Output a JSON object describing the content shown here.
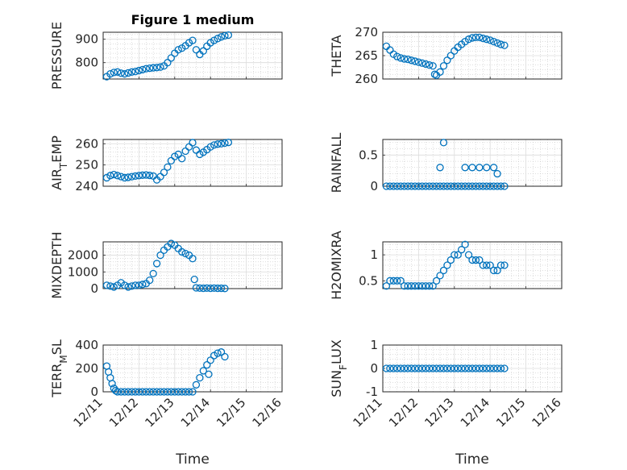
{
  "chart_data": [
    {
      "type": "scatter",
      "id": "pressure",
      "title": "Figure 1 medium",
      "ylabel": "PRESSURE",
      "xlabel": "",
      "ylim": [
        730,
        930
      ],
      "yticks": [
        800,
        900
      ],
      "ytick_labels": [
        "800",
        "900"
      ],
      "xlim": [
        0,
        5
      ],
      "xticks": [
        0,
        1,
        2,
        3,
        4,
        5
      ],
      "xtick_labels": [
        "12/11",
        "12/12",
        "12/13",
        "12/14",
        "12/15",
        "12/16"
      ],
      "show_xtick_labels": false,
      "grid": true,
      "minor_grid": true,
      "points": [
        [
          0.1,
          740
        ],
        [
          0.2,
          752
        ],
        [
          0.3,
          758
        ],
        [
          0.4,
          760
        ],
        [
          0.5,
          755
        ],
        [
          0.6,
          752
        ],
        [
          0.7,
          756
        ],
        [
          0.8,
          760
        ],
        [
          0.9,
          762
        ],
        [
          1.0,
          766
        ],
        [
          1.1,
          770
        ],
        [
          1.2,
          774
        ],
        [
          1.3,
          776
        ],
        [
          1.4,
          778
        ],
        [
          1.5,
          779
        ],
        [
          1.6,
          781
        ],
        [
          1.7,
          786
        ],
        [
          1.8,
          800
        ],
        [
          1.9,
          820
        ],
        [
          2.0,
          840
        ],
        [
          2.1,
          855
        ],
        [
          2.2,
          862
        ],
        [
          2.3,
          872
        ],
        [
          2.4,
          885
        ],
        [
          2.5,
          895
        ],
        [
          2.6,
          855
        ],
        [
          2.7,
          835
        ],
        [
          2.8,
          850
        ],
        [
          2.9,
          870
        ],
        [
          3.0,
          885
        ],
        [
          3.1,
          895
        ],
        [
          3.2,
          903
        ],
        [
          3.3,
          910
        ],
        [
          3.4,
          915
        ],
        [
          3.5,
          918
        ]
      ]
    },
    {
      "type": "scatter",
      "id": "theta",
      "title": "",
      "ylabel": "THETA",
      "xlabel": "",
      "ylim": [
        260,
        270
      ],
      "yticks": [
        260,
        265,
        270
      ],
      "ytick_labels": [
        "260",
        "265",
        "270"
      ],
      "xlim": [
        0,
        5
      ],
      "xticks": [
        0,
        1,
        2,
        3,
        4,
        5
      ],
      "xtick_labels": [
        "12/11",
        "12/12",
        "12/13",
        "12/14",
        "12/15",
        "12/16"
      ],
      "show_xtick_labels": false,
      "grid": true,
      "minor_grid": true,
      "points": [
        [
          0.1,
          267
        ],
        [
          0.2,
          266.2
        ],
        [
          0.3,
          265.3
        ],
        [
          0.4,
          264.8
        ],
        [
          0.5,
          264.5
        ],
        [
          0.6,
          264.3
        ],
        [
          0.7,
          264.2
        ],
        [
          0.8,
          264
        ],
        [
          0.9,
          263.8
        ],
        [
          1.0,
          263.6
        ],
        [
          1.1,
          263.4
        ],
        [
          1.2,
          263.2
        ],
        [
          1.3,
          263
        ],
        [
          1.4,
          262.8
        ],
        [
          1.45,
          261
        ],
        [
          1.5,
          260.8
        ],
        [
          1.6,
          261.5
        ],
        [
          1.7,
          262.8
        ],
        [
          1.8,
          264
        ],
        [
          1.9,
          265
        ],
        [
          2.0,
          266
        ],
        [
          2.1,
          266.8
        ],
        [
          2.2,
          267.4
        ],
        [
          2.3,
          268
        ],
        [
          2.4,
          268.5
        ],
        [
          2.5,
          268.8
        ],
        [
          2.6,
          268.9
        ],
        [
          2.7,
          268.9
        ],
        [
          2.8,
          268.7
        ],
        [
          2.9,
          268.5
        ],
        [
          3.0,
          268.3
        ],
        [
          3.1,
          268
        ],
        [
          3.2,
          267.7
        ],
        [
          3.3,
          267.4
        ],
        [
          3.4,
          267.2
        ]
      ]
    },
    {
      "type": "scatter",
      "id": "air_temp",
      "title": "",
      "ylabel": "AIR_TEMP",
      "xlabel": "",
      "ylim": [
        240,
        262
      ],
      "yticks": [
        240,
        250,
        260
      ],
      "ytick_labels": [
        "240",
        "250",
        "260"
      ],
      "xlim": [
        0,
        5
      ],
      "xticks": [
        0,
        1,
        2,
        3,
        4,
        5
      ],
      "xtick_labels": [
        "12/11",
        "12/12",
        "12/13",
        "12/14",
        "12/15",
        "12/16"
      ],
      "show_xtick_labels": false,
      "grid": true,
      "minor_grid": true,
      "points": [
        [
          0.1,
          244
        ],
        [
          0.2,
          245
        ],
        [
          0.3,
          245.5
        ],
        [
          0.4,
          245
        ],
        [
          0.5,
          244.5
        ],
        [
          0.6,
          244
        ],
        [
          0.7,
          244.2
        ],
        [
          0.8,
          244.5
        ],
        [
          0.9,
          244.8
        ],
        [
          1.0,
          245
        ],
        [
          1.1,
          245.2
        ],
        [
          1.2,
          245.3
        ],
        [
          1.3,
          245.1
        ],
        [
          1.4,
          244.8
        ],
        [
          1.5,
          243
        ],
        [
          1.6,
          244.5
        ],
        [
          1.7,
          246.5
        ],
        [
          1.8,
          249
        ],
        [
          1.9,
          252
        ],
        [
          2.0,
          254
        ],
        [
          2.1,
          255
        ],
        [
          2.2,
          253
        ],
        [
          2.3,
          256.5
        ],
        [
          2.4,
          258.5
        ],
        [
          2.5,
          260.5
        ],
        [
          2.6,
          257
        ],
        [
          2.7,
          255
        ],
        [
          2.8,
          256
        ],
        [
          2.9,
          257.2
        ],
        [
          3.0,
          258.5
        ],
        [
          3.1,
          259.4
        ],
        [
          3.2,
          259.8
        ],
        [
          3.3,
          260
        ],
        [
          3.4,
          260.3
        ],
        [
          3.5,
          260.6
        ]
      ]
    },
    {
      "type": "scatter",
      "id": "rainfall",
      "title": "",
      "ylabel": "RAINFALL",
      "xlabel": "",
      "ylim": [
        0,
        0.75
      ],
      "yticks": [
        0,
        0.5
      ],
      "ytick_labels": [
        "0",
        "0.5"
      ],
      "xlim": [
        0,
        5
      ],
      "xticks": [
        0,
        1,
        2,
        3,
        4,
        5
      ],
      "xtick_labels": [
        "12/11",
        "12/12",
        "12/13",
        "12/14",
        "12/15",
        "12/16"
      ],
      "show_xtick_labels": false,
      "grid": true,
      "minor_grid": true,
      "points": [
        [
          0.1,
          0
        ],
        [
          0.2,
          0
        ],
        [
          0.3,
          0
        ],
        [
          0.4,
          0
        ],
        [
          0.5,
          0
        ],
        [
          0.6,
          0
        ],
        [
          0.7,
          0
        ],
        [
          0.8,
          0
        ],
        [
          0.9,
          0
        ],
        [
          1.0,
          0
        ],
        [
          1.1,
          0
        ],
        [
          1.2,
          0
        ],
        [
          1.3,
          0
        ],
        [
          1.4,
          0
        ],
        [
          1.5,
          0
        ],
        [
          1.6,
          0
        ],
        [
          1.7,
          0
        ],
        [
          1.8,
          0
        ],
        [
          1.9,
          0
        ],
        [
          2.0,
          0
        ],
        [
          2.1,
          0
        ],
        [
          2.2,
          0
        ],
        [
          2.3,
          0
        ],
        [
          2.4,
          0
        ],
        [
          2.5,
          0
        ],
        [
          2.6,
          0
        ],
        [
          2.7,
          0
        ],
        [
          2.8,
          0
        ],
        [
          2.9,
          0
        ],
        [
          3.0,
          0
        ],
        [
          3.1,
          0
        ],
        [
          3.2,
          0
        ],
        [
          3.3,
          0
        ],
        [
          3.4,
          0
        ],
        [
          1.6,
          0.3
        ],
        [
          1.7,
          0.7
        ],
        [
          2.3,
          0.3
        ],
        [
          2.5,
          0.3
        ],
        [
          2.7,
          0.3
        ],
        [
          2.9,
          0.3
        ],
        [
          3.1,
          0.3
        ],
        [
          3.2,
          0.2
        ]
      ]
    },
    {
      "type": "scatter",
      "id": "mixdepth",
      "title": "",
      "ylabel": "MIXDEPTH",
      "xlabel": "",
      "ylim": [
        0,
        2800
      ],
      "yticks": [
        0,
        1000,
        2000
      ],
      "ytick_labels": [
        "0",
        "1000",
        "2000"
      ],
      "xlim": [
        0,
        5
      ],
      "xticks": [
        0,
        1,
        2,
        3,
        4,
        5
      ],
      "xtick_labels": [
        "12/11",
        "12/12",
        "12/13",
        "12/14",
        "12/15",
        "12/16"
      ],
      "show_xtick_labels": false,
      "grid": true,
      "minor_grid": true,
      "points": [
        [
          0.1,
          200
        ],
        [
          0.2,
          150
        ],
        [
          0.3,
          100
        ],
        [
          0.4,
          200
        ],
        [
          0.5,
          350
        ],
        [
          0.6,
          200
        ],
        [
          0.7,
          100
        ],
        [
          0.8,
          150
        ],
        [
          0.9,
          200
        ],
        [
          1.0,
          200
        ],
        [
          1.1,
          250
        ],
        [
          1.2,
          300
        ],
        [
          1.3,
          500
        ],
        [
          1.4,
          900
        ],
        [
          1.5,
          1500
        ],
        [
          1.6,
          2000
        ],
        [
          1.7,
          2300
        ],
        [
          1.8,
          2500
        ],
        [
          1.9,
          2700
        ],
        [
          2.0,
          2600
        ],
        [
          2.1,
          2400
        ],
        [
          2.2,
          2200
        ],
        [
          2.3,
          2100
        ],
        [
          2.4,
          2000
        ],
        [
          2.5,
          1800
        ],
        [
          2.55,
          550
        ],
        [
          2.6,
          50
        ],
        [
          2.7,
          30
        ],
        [
          2.8,
          20
        ],
        [
          2.9,
          30
        ],
        [
          3.0,
          20
        ],
        [
          3.1,
          30
        ],
        [
          3.2,
          20
        ],
        [
          3.3,
          20
        ],
        [
          3.4,
          10
        ]
      ]
    },
    {
      "type": "scatter",
      "id": "h2omixra",
      "title": "",
      "ylabel": "H2OMIXRA",
      "xlabel": "",
      "ylim": [
        0.35,
        1.25
      ],
      "yticks": [
        0.5,
        1
      ],
      "ytick_labels": [
        "0.5",
        "1"
      ],
      "xlim": [
        0,
        5
      ],
      "xticks": [
        0,
        1,
        2,
        3,
        4,
        5
      ],
      "xtick_labels": [
        "12/11",
        "12/12",
        "12/13",
        "12/14",
        "12/15",
        "12/16"
      ],
      "show_xtick_labels": false,
      "grid": true,
      "minor_grid": true,
      "points": [
        [
          0.1,
          0.4
        ],
        [
          0.2,
          0.5
        ],
        [
          0.3,
          0.5
        ],
        [
          0.4,
          0.5
        ],
        [
          0.5,
          0.5
        ],
        [
          0.6,
          0.4
        ],
        [
          0.7,
          0.4
        ],
        [
          0.8,
          0.4
        ],
        [
          0.9,
          0.4
        ],
        [
          1.0,
          0.4
        ],
        [
          1.1,
          0.4
        ],
        [
          1.2,
          0.4
        ],
        [
          1.3,
          0.4
        ],
        [
          1.4,
          0.4
        ],
        [
          1.5,
          0.5
        ],
        [
          1.6,
          0.6
        ],
        [
          1.7,
          0.7
        ],
        [
          1.8,
          0.8
        ],
        [
          1.9,
          0.9
        ],
        [
          2.0,
          1.0
        ],
        [
          2.1,
          1.0
        ],
        [
          2.2,
          1.1
        ],
        [
          2.3,
          1.2
        ],
        [
          2.4,
          1.0
        ],
        [
          2.5,
          0.9
        ],
        [
          2.6,
          0.9
        ],
        [
          2.7,
          0.9
        ],
        [
          2.8,
          0.8
        ],
        [
          2.9,
          0.8
        ],
        [
          3.0,
          0.8
        ],
        [
          3.1,
          0.7
        ],
        [
          3.2,
          0.7
        ],
        [
          3.3,
          0.8
        ],
        [
          3.4,
          0.8
        ]
      ]
    },
    {
      "type": "scatter",
      "id": "terr_msl",
      "title": "",
      "ylabel": "TERR_MSL",
      "xlabel": "Time",
      "ylim": [
        0,
        400
      ],
      "yticks": [
        0,
        200,
        400
      ],
      "ytick_labels": [
        "0",
        "200",
        "400"
      ],
      "xlim": [
        0,
        5
      ],
      "xticks": [
        0,
        1,
        2,
        3,
        4,
        5
      ],
      "xtick_labels": [
        "12/11",
        "12/12",
        "12/13",
        "12/14",
        "12/15",
        "12/16"
      ],
      "show_xtick_labels": true,
      "grid": true,
      "minor_grid": true,
      "points": [
        [
          0.1,
          220
        ],
        [
          0.15,
          170
        ],
        [
          0.2,
          120
        ],
        [
          0.25,
          70
        ],
        [
          0.3,
          30
        ],
        [
          0.35,
          10
        ],
        [
          0.4,
          0
        ],
        [
          0.5,
          0
        ],
        [
          0.6,
          0
        ],
        [
          0.7,
          0
        ],
        [
          0.8,
          0
        ],
        [
          0.9,
          0
        ],
        [
          1.0,
          0
        ],
        [
          1.1,
          0
        ],
        [
          1.2,
          0
        ],
        [
          1.3,
          0
        ],
        [
          1.4,
          0
        ],
        [
          1.5,
          0
        ],
        [
          1.6,
          0
        ],
        [
          1.7,
          0
        ],
        [
          1.8,
          0
        ],
        [
          1.9,
          0
        ],
        [
          2.0,
          0
        ],
        [
          2.1,
          0
        ],
        [
          2.2,
          0
        ],
        [
          2.3,
          0
        ],
        [
          2.4,
          0
        ],
        [
          2.5,
          0
        ],
        [
          2.6,
          60
        ],
        [
          2.7,
          120
        ],
        [
          2.8,
          180
        ],
        [
          2.9,
          230
        ],
        [
          2.95,
          150
        ],
        [
          3.0,
          270
        ],
        [
          3.1,
          310
        ],
        [
          3.2,
          330
        ],
        [
          3.3,
          340
        ],
        [
          3.4,
          300
        ]
      ]
    },
    {
      "type": "scatter",
      "id": "sun_flux",
      "title": "",
      "ylabel": "SUN_FLUX",
      "xlabel": "Time",
      "ylim": [
        -1,
        1
      ],
      "yticks": [
        -1,
        0,
        1
      ],
      "ytick_labels": [
        "-1",
        "0",
        "1"
      ],
      "xlim": [
        0,
        5
      ],
      "xticks": [
        0,
        1,
        2,
        3,
        4,
        5
      ],
      "xtick_labels": [
        "12/11",
        "12/12",
        "12/13",
        "12/14",
        "12/15",
        "12/16"
      ],
      "show_xtick_labels": true,
      "grid": true,
      "minor_grid": true,
      "points": [
        [
          0.1,
          0
        ],
        [
          0.2,
          0
        ],
        [
          0.3,
          0
        ],
        [
          0.4,
          0
        ],
        [
          0.5,
          0
        ],
        [
          0.6,
          0
        ],
        [
          0.7,
          0
        ],
        [
          0.8,
          0
        ],
        [
          0.9,
          0
        ],
        [
          1.0,
          0
        ],
        [
          1.1,
          0
        ],
        [
          1.2,
          0
        ],
        [
          1.3,
          0
        ],
        [
          1.4,
          0
        ],
        [
          1.5,
          0
        ],
        [
          1.6,
          0
        ],
        [
          1.7,
          0
        ],
        [
          1.8,
          0
        ],
        [
          1.9,
          0
        ],
        [
          2.0,
          0
        ],
        [
          2.1,
          0
        ],
        [
          2.2,
          0
        ],
        [
          2.3,
          0
        ],
        [
          2.4,
          0
        ],
        [
          2.5,
          0
        ],
        [
          2.6,
          0
        ],
        [
          2.7,
          0
        ],
        [
          2.8,
          0
        ],
        [
          2.9,
          0
        ],
        [
          3.0,
          0
        ],
        [
          3.1,
          0
        ],
        [
          3.2,
          0
        ],
        [
          3.3,
          0
        ],
        [
          3.4,
          0
        ]
      ]
    }
  ],
  "colors": {
    "marker": "#0072bd",
    "axes": "#262626",
    "grid": "#dcdcdc"
  }
}
